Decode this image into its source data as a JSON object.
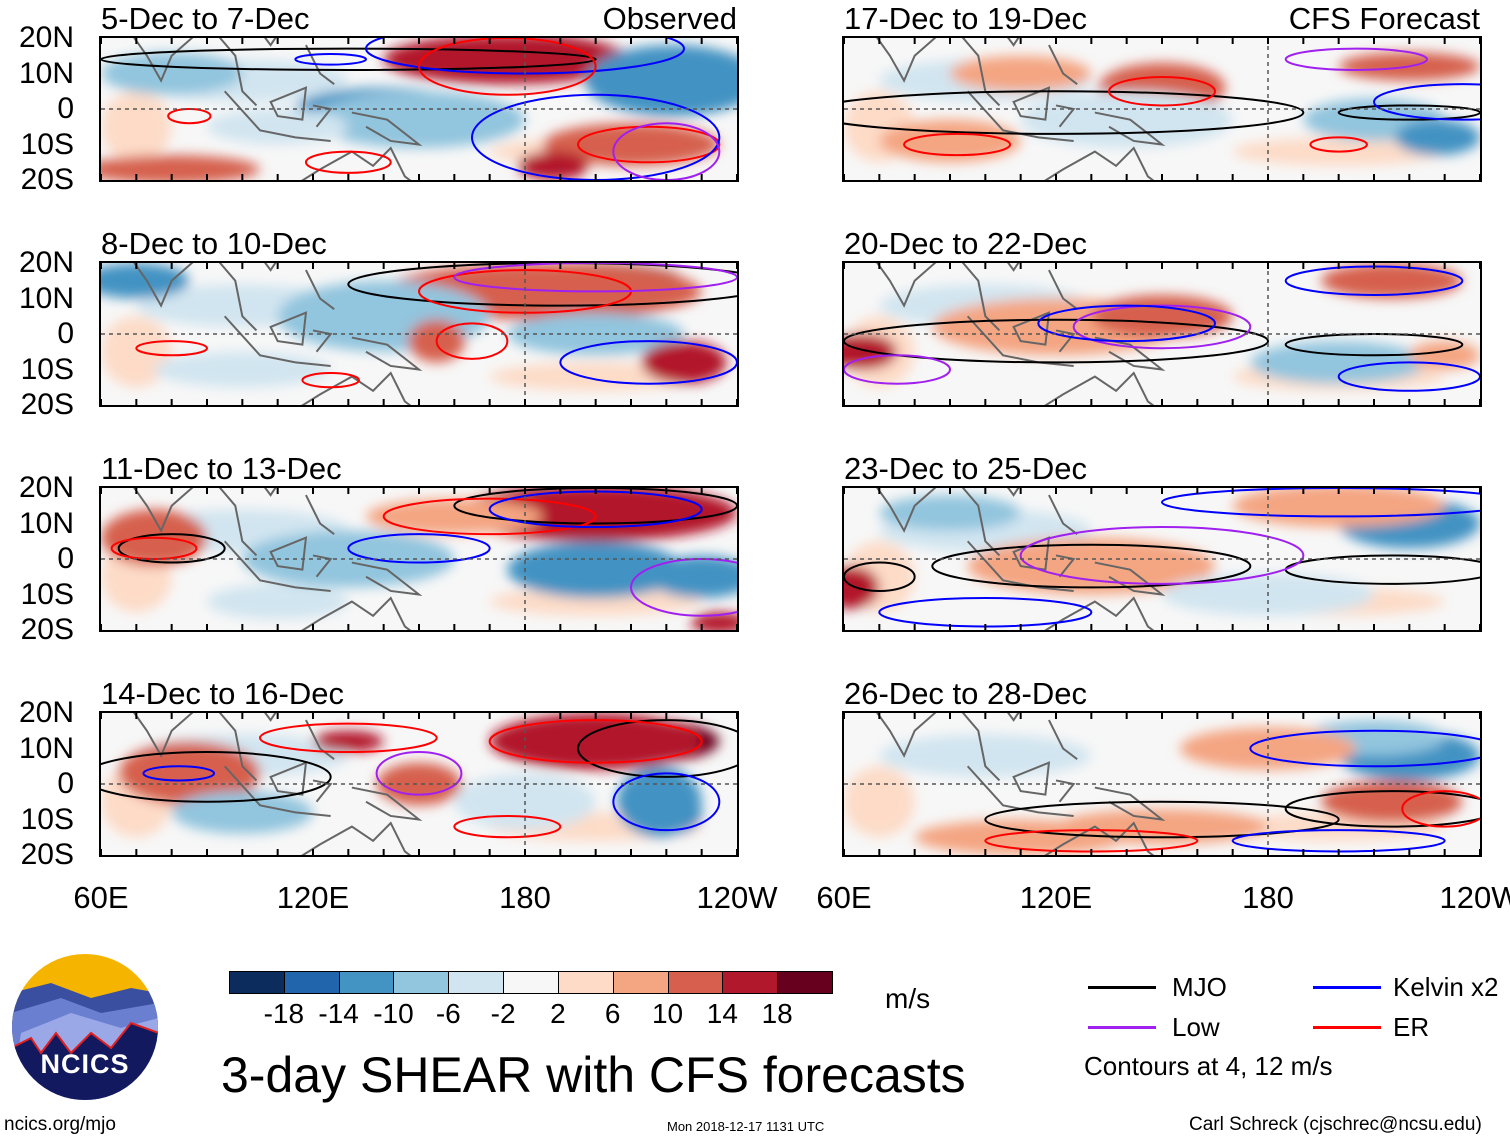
{
  "panels_observed": [
    {
      "title": "5-Dec to 7-Dec",
      "label": "Observed"
    },
    {
      "title": "8-Dec to 10-Dec"
    },
    {
      "title": "11-Dec to 13-Dec"
    },
    {
      "title": "14-Dec to 16-Dec"
    }
  ],
  "panels_forecast": [
    {
      "title": "17-Dec to 19-Dec",
      "label": "CFS Forecast"
    },
    {
      "title": "20-Dec to 22-Dec"
    },
    {
      "title": "23-Dec to 25-Dec"
    },
    {
      "title": "26-Dec to 28-Dec"
    }
  ],
  "lat_labels": [
    "20N",
    "10N",
    "0",
    "10S",
    "20S"
  ],
  "lon_labels": [
    "60E",
    "120E",
    "180",
    "120W"
  ],
  "colorbar": {
    "colors": [
      "#0b2c5c",
      "#2166ac",
      "#4393c3",
      "#92c5de",
      "#d1e5f0",
      "#f7f7f7",
      "#fddbc7",
      "#f4a582",
      "#d6604d",
      "#b2182b",
      "#67001f"
    ],
    "labels": [
      "-18",
      "-14",
      "-10",
      "-6",
      "-2",
      "2",
      "6",
      "10",
      "14",
      "18"
    ],
    "units": "m/s"
  },
  "legend": {
    "items": [
      {
        "label": "MJO",
        "color": "#000000"
      },
      {
        "label": "Kelvin x2",
        "color": "#0000ff"
      },
      {
        "label": "Low",
        "color": "#a020f0"
      },
      {
        "label": "ER",
        "color": "#ff0000"
      }
    ],
    "note": "Contours at 4, 12 m/s"
  },
  "title": "3-day SHEAR with CFS forecasts",
  "logo_text": "NCICS",
  "footer": {
    "url": "ncics.org/mjo",
    "timestamp": "Mon 2018-12-17 1131 UTC",
    "credit": "Carl Schreck (cjschrec@ncsu.edu)"
  }
}
